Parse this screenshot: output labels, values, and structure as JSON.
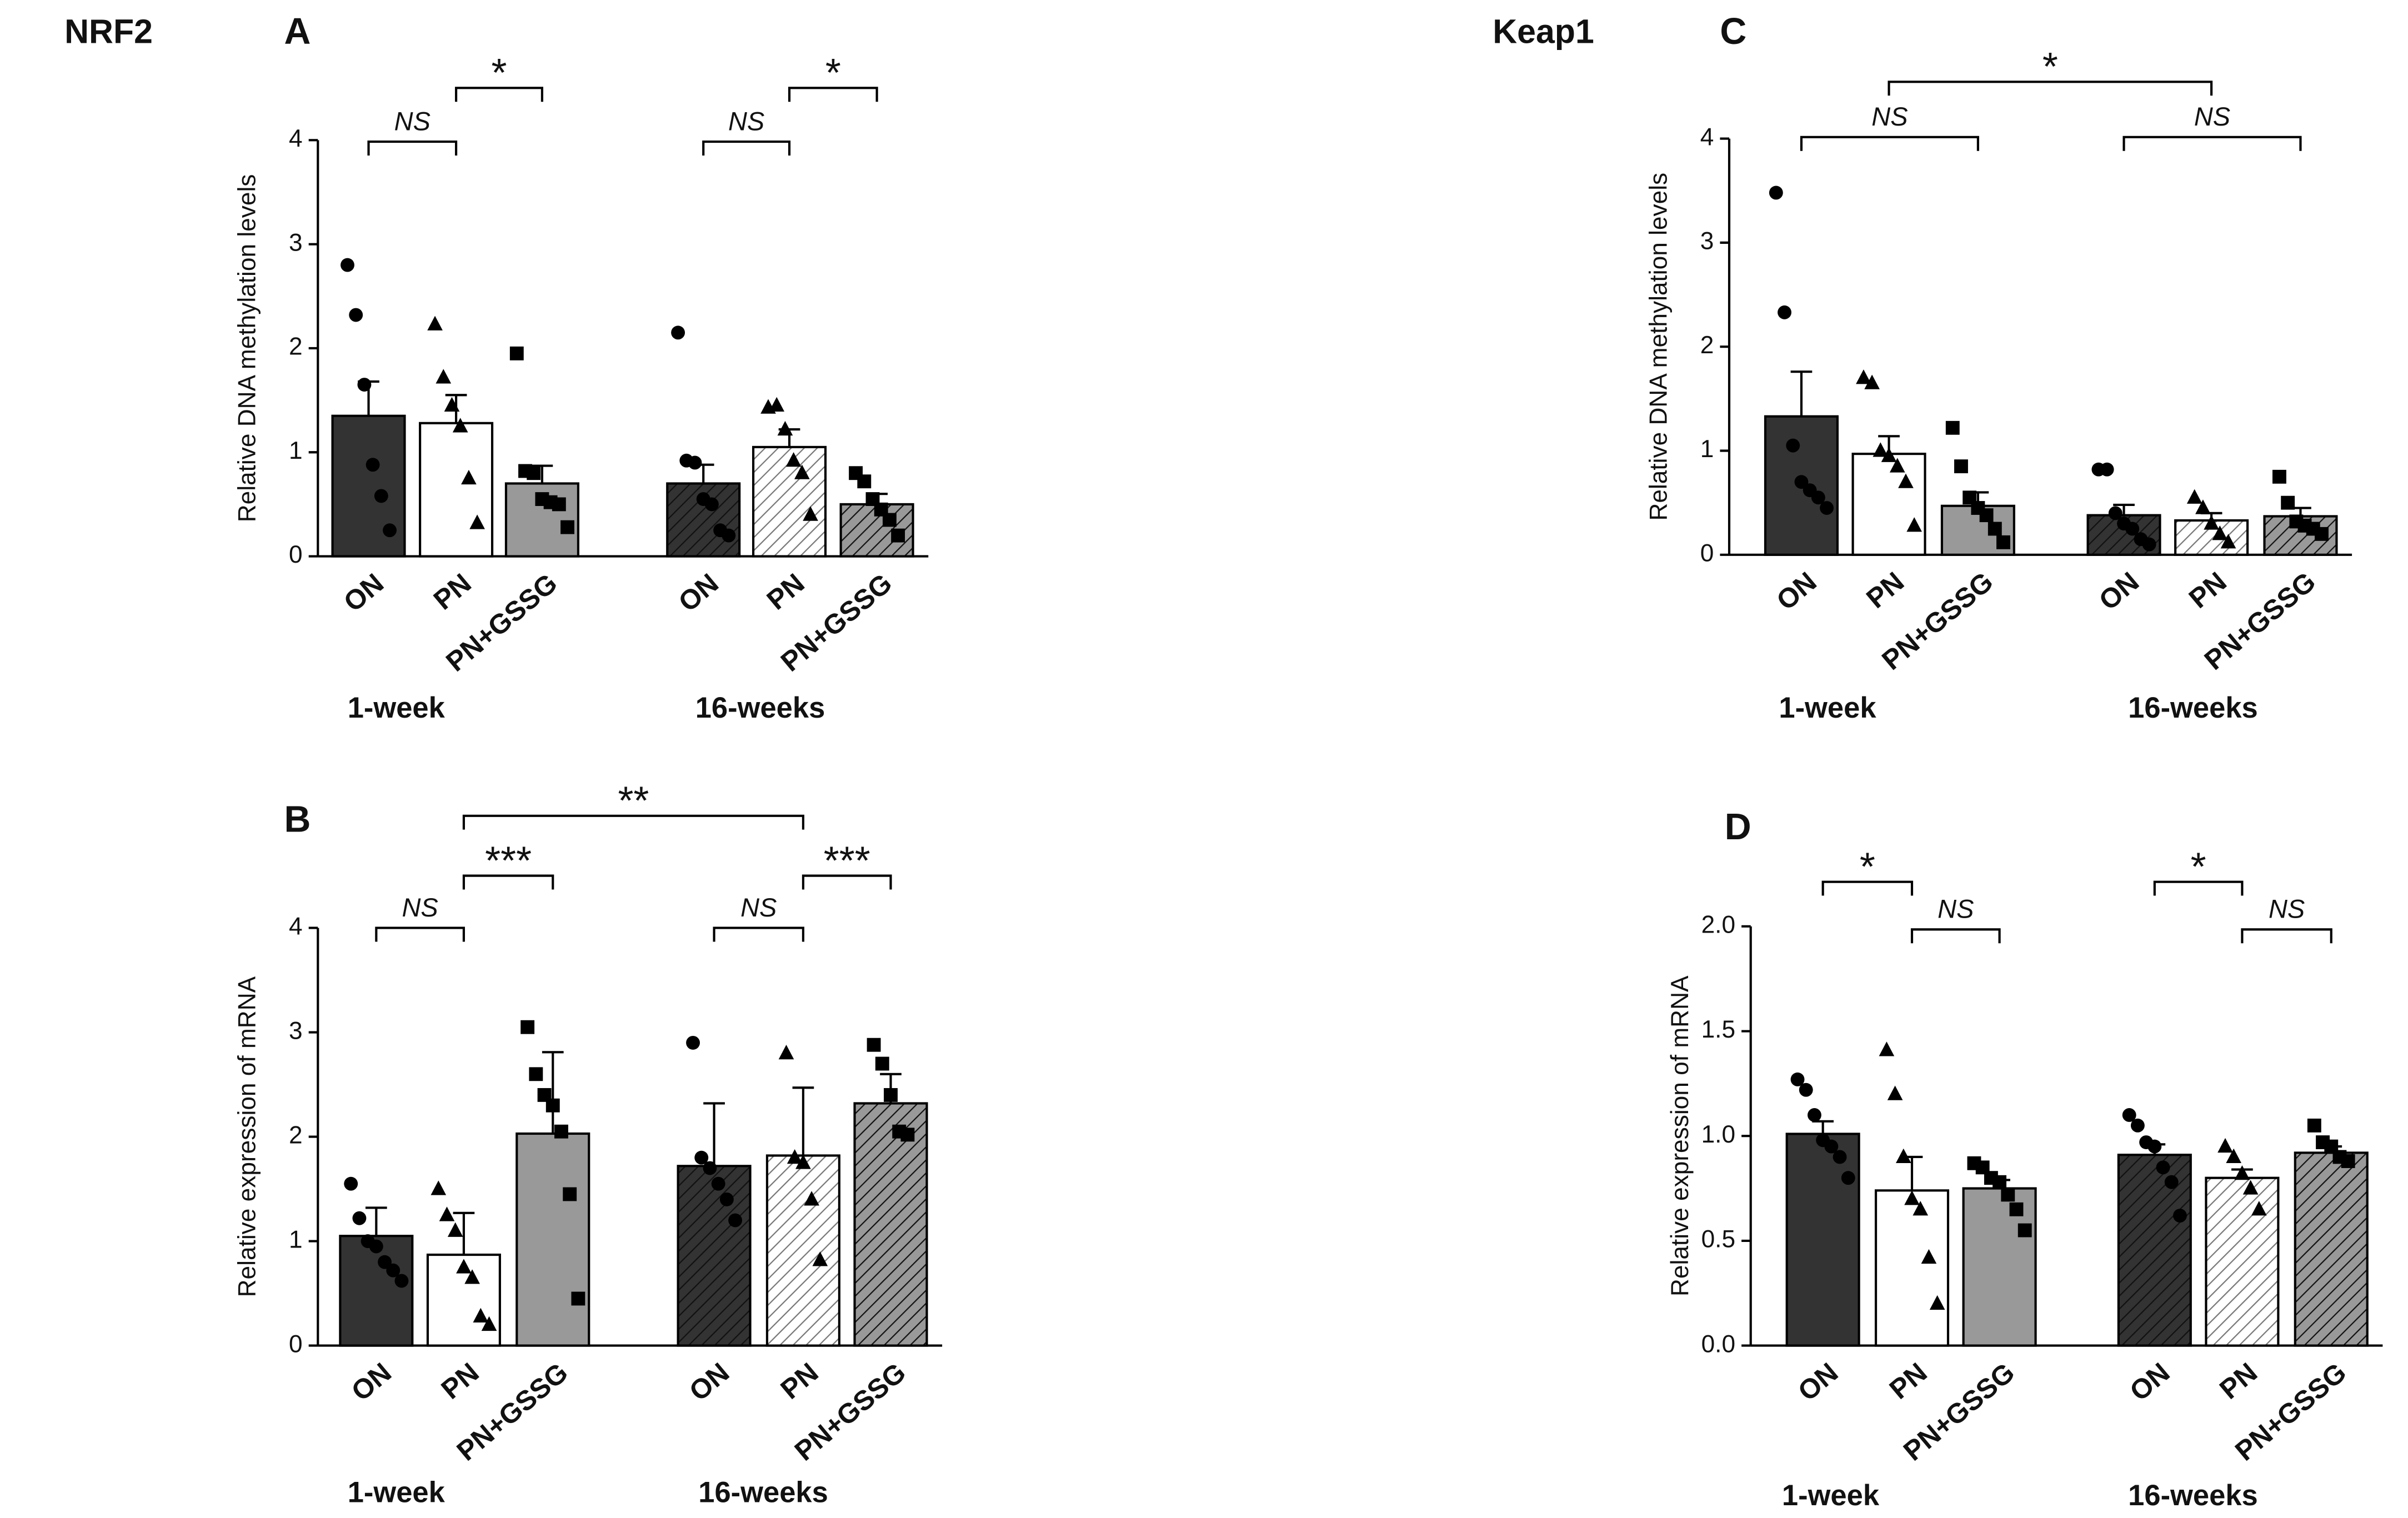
{
  "chart_data": [
    {
      "type": "bar",
      "title": "A",
      "heading": "NRF2",
      "ylabel": "Relative DNA methylation levels",
      "ylim": [
        0,
        4
      ],
      "yticks": [
        0,
        1,
        2,
        3,
        4
      ],
      "groups": [
        "1-week",
        "16-weeks"
      ],
      "categories": [
        "ON",
        "PN",
        "PN+GSSG",
        "ON",
        "PN",
        "PN+GSSG"
      ],
      "colors": [
        "#333333",
        "#ffffff",
        "#999999",
        "#333333",
        "#ffffff",
        "#999999"
      ],
      "hatch": [
        false,
        false,
        false,
        true,
        true,
        true
      ],
      "markers": [
        "circle",
        "triangle",
        "square",
        "circle",
        "triangle",
        "square"
      ],
      "values": [
        1.35,
        1.28,
        0.7,
        0.7,
        1.05,
        0.5
      ],
      "errors": [
        0.33,
        0.27,
        0.17,
        0.18,
        0.17,
        0.1
      ],
      "points": [
        [
          2.8,
          2.32,
          1.65,
          0.88,
          0.58,
          0.25
        ],
        [
          2.23,
          1.72,
          1.45,
          1.25,
          0.75,
          0.32
        ],
        [
          1.95,
          0.82,
          0.8,
          0.55,
          0.52,
          0.5,
          0.28
        ],
        [
          2.15,
          0.92,
          0.9,
          0.55,
          0.5,
          0.25,
          0.2
        ],
        [
          1.43,
          1.45,
          1.22,
          0.92,
          0.8,
          0.4
        ],
        [
          0.8,
          0.72,
          0.55,
          0.45,
          0.35,
          0.2
        ]
      ],
      "annotations": [
        "NS",
        "*",
        "NS",
        "*"
      ]
    },
    {
      "type": "bar",
      "title": "B",
      "ylabel": "Relative expression of mRNA",
      "ylim": [
        0,
        4
      ],
      "yticks": [
        0,
        1,
        2,
        3,
        4
      ],
      "groups": [
        "1-week",
        "16-weeks"
      ],
      "categories": [
        "ON",
        "PN",
        "PN+GSSG",
        "ON",
        "PN",
        "PN+GSSG"
      ],
      "colors": [
        "#333333",
        "#ffffff",
        "#999999",
        "#333333",
        "#ffffff",
        "#999999"
      ],
      "hatch": [
        false,
        false,
        false,
        true,
        true,
        true
      ],
      "markers": [
        "circle",
        "triangle",
        "square",
        "circle",
        "triangle",
        "square"
      ],
      "values": [
        1.05,
        0.87,
        2.03,
        1.72,
        1.82,
        2.32
      ],
      "errors": [
        0.27,
        0.4,
        0.78,
        0.6,
        0.65,
        0.28
      ],
      "points": [
        [
          1.55,
          1.22,
          1.0,
          0.95,
          0.8,
          0.72,
          0.62
        ],
        [
          1.5,
          1.25,
          1.1,
          0.75,
          0.65,
          0.28,
          0.2
        ],
        [
          3.05,
          2.6,
          2.4,
          2.3,
          2.05,
          1.45,
          0.45
        ],
        [
          2.9,
          1.8,
          1.7,
          1.55,
          1.4,
          1.2
        ],
        [
          2.8,
          1.8,
          1.75,
          1.4,
          0.82
        ],
        [
          2.88,
          2.7,
          2.4,
          2.05,
          2.02
        ]
      ],
      "annotations": [
        "NS",
        "***",
        "NS",
        "***",
        "**"
      ]
    },
    {
      "type": "bar",
      "title": "C",
      "heading": "Keap1",
      "ylabel": "Relative DNA methylation levels",
      "ylim": [
        0,
        4
      ],
      "yticks": [
        0,
        1,
        2,
        3,
        4
      ],
      "groups": [
        "1-week",
        "16-weeks"
      ],
      "categories": [
        "ON",
        "PN",
        "PN+GSSG",
        "ON",
        "PN",
        "PN+GSSG"
      ],
      "colors": [
        "#333333",
        "#ffffff",
        "#999999",
        "#333333",
        "#ffffff",
        "#999999"
      ],
      "hatch": [
        false,
        false,
        false,
        true,
        true,
        true
      ],
      "markers": [
        "circle",
        "triangle",
        "square",
        "circle",
        "triangle",
        "square"
      ],
      "values": [
        1.33,
        0.97,
        0.47,
        0.38,
        0.33,
        0.37
      ],
      "errors": [
        0.43,
        0.17,
        0.13,
        0.1,
        0.07,
        0.08
      ],
      "points": [
        [
          3.48,
          2.33,
          1.05,
          0.7,
          0.62,
          0.55,
          0.45
        ],
        [
          1.7,
          1.65,
          1.0,
          0.95,
          0.85,
          0.7,
          0.28
        ],
        [
          1.22,
          0.85,
          0.55,
          0.45,
          0.38,
          0.25,
          0.12
        ],
        [
          0.82,
          0.82,
          0.4,
          0.3,
          0.25,
          0.15,
          0.1
        ],
        [
          0.55,
          0.45,
          0.3,
          0.2,
          0.12
        ],
        [
          0.75,
          0.5,
          0.32,
          0.28,
          0.25,
          0.2
        ]
      ],
      "annotations": [
        "NS",
        "NS",
        "*"
      ]
    },
    {
      "type": "bar",
      "title": "D",
      "ylabel": "Relative expression of mRNA",
      "ylim": [
        0,
        2
      ],
      "yticks": [
        {
          "value": 0,
          "label": "0.0"
        },
        0.5,
        {
          "value": 1,
          "label": "1.0"
        },
        1.5,
        {
          "value": 2,
          "label": "2.0"
        }
      ],
      "groups": [
        "1-week",
        "16-weeks"
      ],
      "categories": [
        "ON",
        "PN",
        "PN+GSSG",
        "ON",
        "PN",
        "PN+GSSG"
      ],
      "colors": [
        "#333333",
        "#ffffff",
        "#999999",
        "#333333",
        "#ffffff",
        "#999999"
      ],
      "hatch": [
        false,
        false,
        false,
        true,
        true,
        true
      ],
      "markers": [
        "circle",
        "triangle",
        "square",
        "circle",
        "triangle",
        "square"
      ],
      "values": [
        1.01,
        0.74,
        0.75,
        0.91,
        0.8,
        0.92
      ],
      "errors": [
        0.06,
        0.16,
        0.04,
        0.05,
        0.04,
        0.03
      ],
      "points": [
        [
          1.27,
          1.22,
          1.1,
          0.98,
          0.95,
          0.9,
          0.8
        ],
        [
          1.41,
          1.2,
          0.9,
          0.7,
          0.65,
          0.42,
          0.2
        ],
        [
          0.87,
          0.85,
          0.8,
          0.78,
          0.72,
          0.65,
          0.55
        ],
        [
          1.1,
          1.05,
          0.97,
          0.95,
          0.85,
          0.78,
          0.62
        ],
        [
          0.95,
          0.9,
          0.82,
          0.75,
          0.65
        ],
        [
          1.05,
          0.97,
          0.95,
          0.9,
          0.88
        ]
      ],
      "annotations": [
        "*",
        "NS",
        "*",
        "NS"
      ]
    }
  ]
}
